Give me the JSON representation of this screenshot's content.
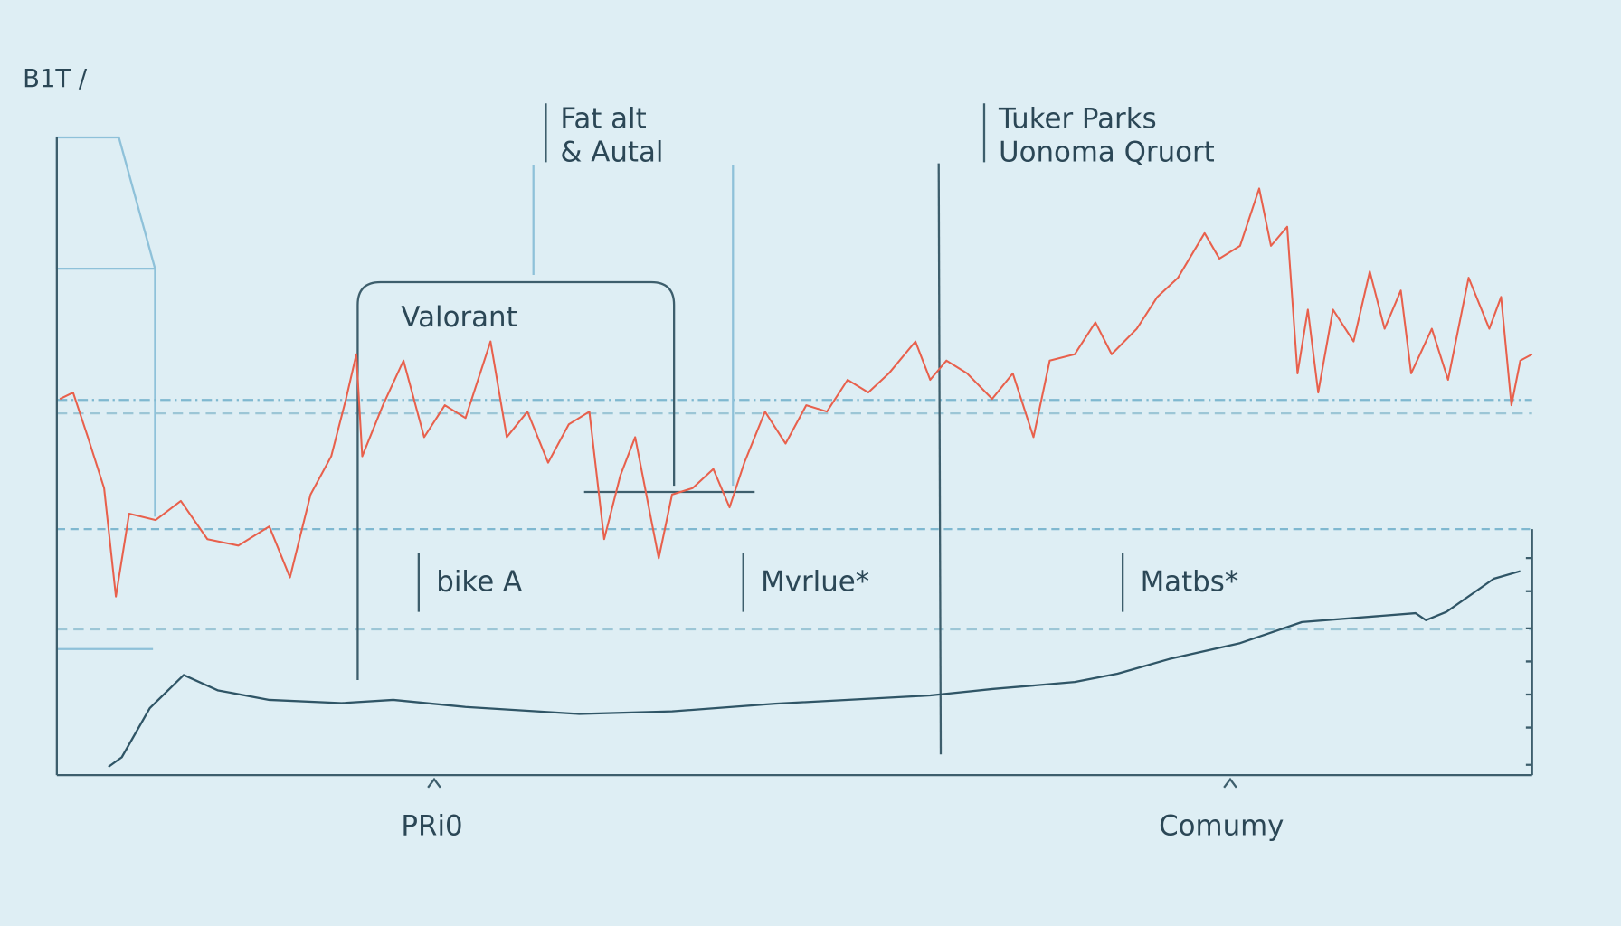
{
  "chart_data": {
    "type": "line",
    "title": "B1T /",
    "annotations": [
      "Fat alt",
      "& Autal",
      "Tuker Parks",
      "Uonoma Qruort",
      "Valorant",
      "bike A",
      "Mvrlue*",
      "Matbs*",
      "PRi0",
      "Comumy"
    ],
    "xlim": [
      0,
      100
    ],
    "ylim": [
      0,
      100
    ],
    "series": [
      {
        "color": "#e8604c",
        "x": [
          0.2,
          1.1,
          2.1,
          3.2,
          4.0,
          4.9,
          6.7,
          8.4,
          10.2,
          12.3,
          14.4,
          15.8,
          17.2,
          18.6,
          19.6,
          20.3,
          20.7,
          22.1,
          23.5,
          24.9,
          26.3,
          27.7,
          29.4,
          30.5,
          31.9,
          33.3,
          34.7,
          36.1,
          37.1,
          38.2,
          39.2,
          40.8,
          41.7,
          43.1,
          44.5,
          45.6,
          46.6,
          48.0,
          49.4,
          50.8,
          52.2,
          53.6,
          55.0,
          56.4,
          58.2,
          59.2,
          60.3,
          61.7,
          63.4,
          64.8,
          66.2,
          67.3,
          69.0,
          70.4,
          71.5,
          73.2,
          74.6,
          76.0,
          77.8,
          78.8,
          80.2,
          81.5,
          82.3,
          83.4,
          84.1,
          84.8,
          85.5,
          86.5,
          87.9,
          89.0,
          90.0,
          91.1,
          91.8,
          93.2,
          94.3,
          95.7,
          97.1,
          97.9,
          98.6,
          99.2,
          100
        ],
        "values": [
          59,
          60,
          53,
          45,
          28,
          41,
          40,
          43,
          37,
          36,
          39,
          31,
          44,
          50,
          59,
          66,
          50,
          58,
          65,
          53,
          58,
          56,
          68,
          53,
          57,
          49,
          55,
          57,
          37,
          47,
          53,
          34,
          44,
          45,
          48,
          42,
          49,
          57,
          52,
          58,
          57,
          62,
          60,
          63,
          68,
          62,
          65,
          63,
          59,
          63,
          53,
          65,
          66,
          71,
          66,
          70,
          75,
          78,
          85,
          81,
          83,
          92,
          83,
          86,
          63,
          73,
          60,
          73,
          68,
          79,
          70,
          76,
          63,
          70,
          62,
          78,
          70,
          75,
          58,
          65,
          66
        ]
      },
      {
        "color": "#2f5566",
        "x": [
          3.5,
          4.4,
          6.3,
          8.6,
          10.9,
          14.4,
          19.3,
          22.8,
          27.7,
          35.4,
          41.7,
          48.7,
          59.2,
          63.4,
          69.0,
          71.9,
          75.4,
          80.2,
          84.4,
          92.1,
          92.8,
          94.2,
          97.4,
          99.2
        ],
        "values": [
          1.3,
          2.8,
          10.5,
          15.7,
          13.3,
          11.8,
          11.3,
          11.8,
          10.7,
          9.6,
          10.0,
          11.2,
          12.5,
          13.5,
          14.6,
          15.9,
          18.2,
          20.7,
          24.0,
          25.4,
          24.3,
          25.6,
          30.8,
          32.0
        ]
      }
    ]
  }
}
